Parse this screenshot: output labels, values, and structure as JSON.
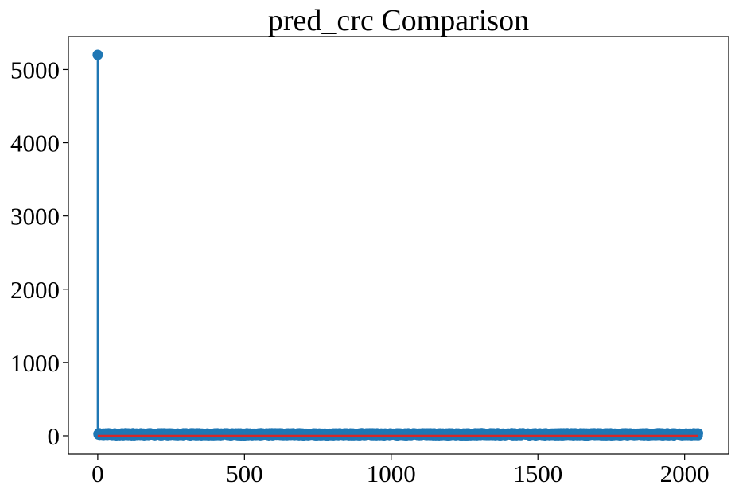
{
  "chart_data": {
    "type": "stem",
    "title": "pred_crc Comparison",
    "xlabel": "",
    "ylabel": "",
    "xlim": [
      -100,
      2150
    ],
    "ylim": [
      -250,
      5450
    ],
    "xticks": [
      0,
      500,
      1000,
      1500,
      2000
    ],
    "yticks": [
      0,
      1000,
      2000,
      3000,
      4000,
      5000
    ],
    "grid": false,
    "legend": "none",
    "x_range": [
      0,
      2047
    ],
    "points": [
      {
        "x": 0,
        "y": 5200
      }
    ],
    "baseline": 0,
    "colors": {
      "stem": "#1f77b4",
      "marker": "#1f77b4",
      "baseline": "#d62728"
    }
  }
}
